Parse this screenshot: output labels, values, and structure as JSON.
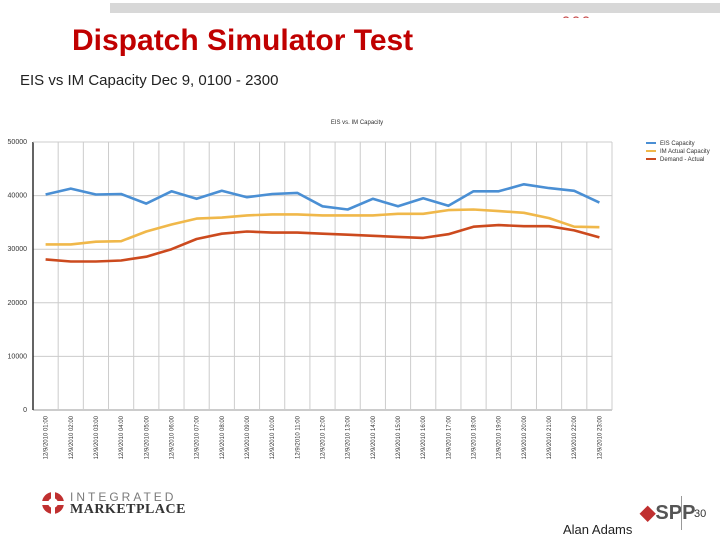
{
  "slide": {
    "title": "Dispatch Simulator Test",
    "subtitle": "EIS vs IM Capacity Dec 9, 0100 - 2300",
    "presenter": "Alan Adams",
    "page_number": "30",
    "logo_line1": "INTEGRATED",
    "logo_line2": "MARKETPLACE",
    "spp_logo": "SPP"
  },
  "colors": {
    "title": "#c00000",
    "eis": "#4a8fd4",
    "im": "#f0b84a",
    "demand": "#cc4a1e",
    "grid": "#cccccc"
  },
  "chart_data": {
    "type": "line",
    "title": "EIS vs. IM Capacity",
    "xlabel": "",
    "ylabel": "",
    "ylim": [
      0,
      50000
    ],
    "yticks": [
      0,
      10000,
      20000,
      30000,
      40000,
      50000
    ],
    "grid": true,
    "legend": "top-right",
    "x": [
      "12/9/2010 01:00",
      "12/9/2010 02:00",
      "12/9/2010 03:00",
      "12/9/2010 04:00",
      "12/9/2010 05:00",
      "12/9/2010 06:00",
      "12/9/2010 07:00",
      "12/9/2010 08:00",
      "12/9/2010 09:00",
      "12/9/2010 10:00",
      "12/9/2010 11:00",
      "12/9/2010 12:00",
      "12/9/2010 13:00",
      "12/9/2010 14:00",
      "12/9/2010 15:00",
      "12/9/2010 16:00",
      "12/9/2010 17:00",
      "12/9/2010 18:00",
      "12/9/2010 19:00",
      "12/9/2010 20:00",
      "12/9/2010 21:00",
      "12/9/2010 22:00",
      "12/9/2010 23:00"
    ],
    "series": [
      {
        "name": "EIS Capacity",
        "color": "#4a8fd4",
        "values": [
          40200,
          41300,
          40200,
          40300,
          38500,
          40800,
          39400,
          40900,
          39700,
          40300,
          40500,
          38000,
          37400,
          39400,
          38000,
          39500,
          38100,
          40800,
          40800,
          42100,
          41400,
          40900,
          38700
        ]
      },
      {
        "name": "IM Actual Capacity",
        "color": "#f0b84a",
        "values": [
          30900,
          30900,
          31400,
          31500,
          33300,
          34600,
          35700,
          35900,
          36300,
          36500,
          36500,
          36300,
          36300,
          36300,
          36600,
          36600,
          37300,
          37400,
          37100,
          36800,
          35800,
          34200,
          34100
        ]
      },
      {
        "name": "Demand - Actual",
        "color": "#cc4a1e",
        "values": [
          28100,
          27700,
          27700,
          27900,
          28600,
          30000,
          31900,
          32900,
          33300,
          33100,
          33100,
          32900,
          32700,
          32500,
          32300,
          32100,
          32800,
          34200,
          34500,
          34300,
          34300,
          33500,
          32200
        ]
      }
    ]
  }
}
